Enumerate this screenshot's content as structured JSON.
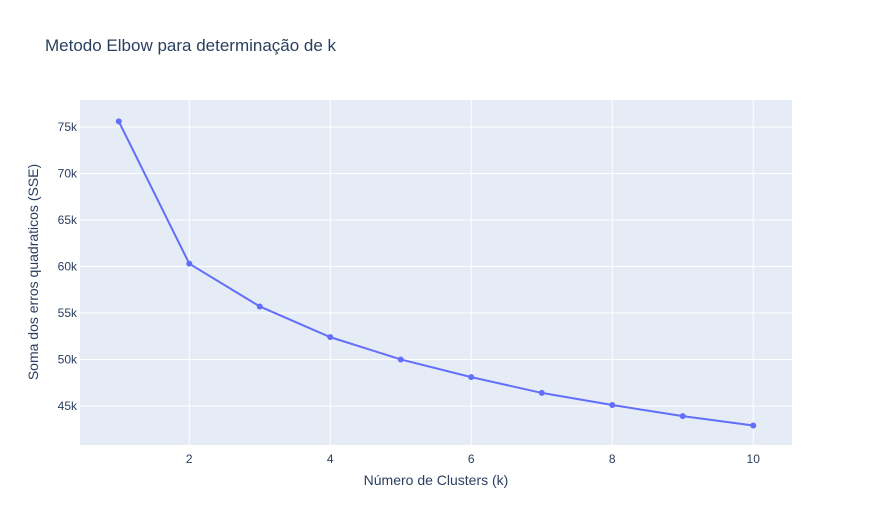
{
  "chart_data": {
    "type": "line",
    "title": "Metodo Elbow para determinação de k",
    "xlabel": "Número de Clusters (k)",
    "ylabel": "Soma dos erros quadraticos (SSE)",
    "x": [
      1,
      2,
      3,
      4,
      5,
      6,
      7,
      8,
      9,
      10
    ],
    "series": [
      {
        "values": [
          75600,
          60300,
          55700,
          52400,
          50000,
          48100,
          46400,
          45100,
          43900,
          42900
        ]
      }
    ],
    "xlim": [
      0.45,
      10.55
    ],
    "ylim": [
      40800,
      77900
    ],
    "xticks": [
      2,
      4,
      6,
      8,
      10
    ],
    "xtick_labels": [
      "2",
      "4",
      "6",
      "8",
      "10"
    ],
    "yticks": [
      45000,
      50000,
      55000,
      60000,
      65000,
      70000,
      75000
    ],
    "ytick_labels": [
      "45k",
      "50k",
      "55k",
      "60k",
      "65k",
      "70k",
      "75k"
    ],
    "grid": true,
    "colors": {
      "line": "#636efa",
      "plot_bg": "#e5ecf6",
      "grid": "#ffffff",
      "text": "#2a3f5f"
    }
  }
}
